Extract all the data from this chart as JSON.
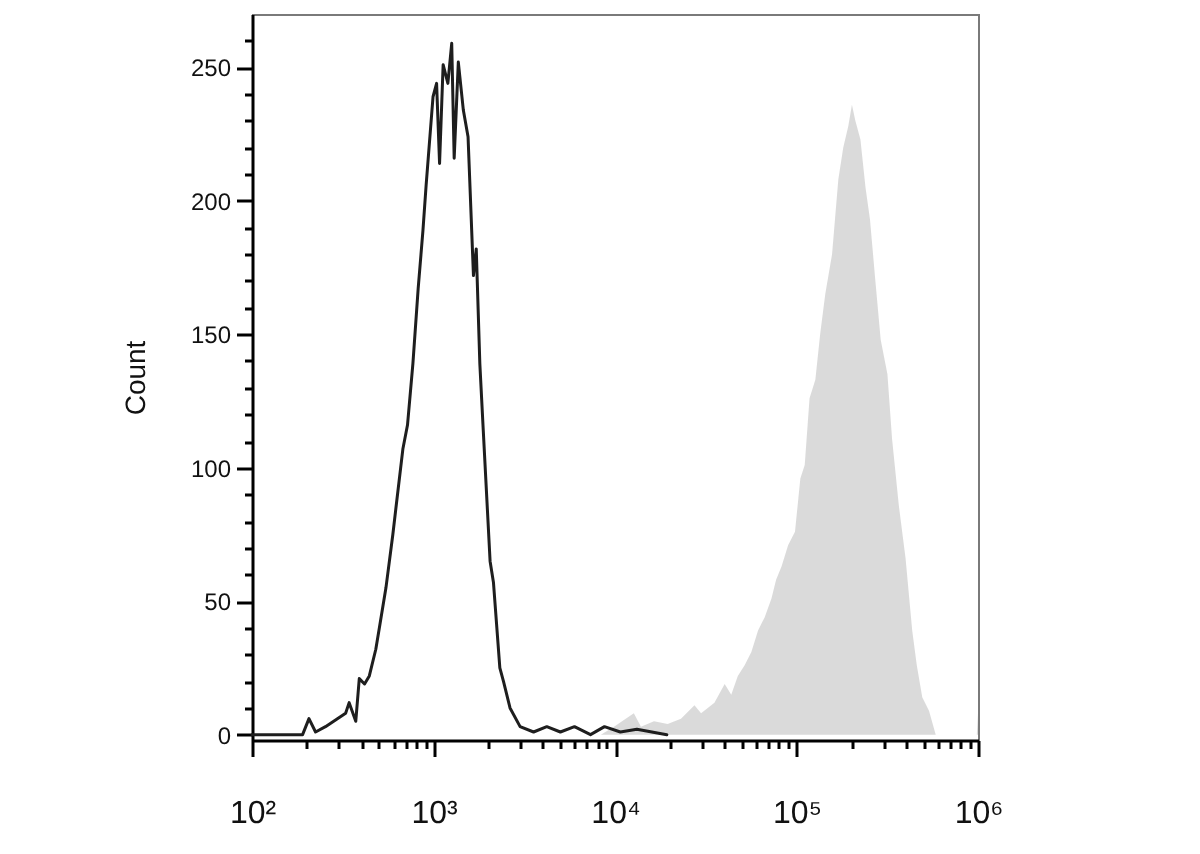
{
  "chart_data": {
    "type": "line",
    "ylabel": "Count",
    "log": "x",
    "xlim": [
      100,
      1000000
    ],
    "xticks": [
      {
        "value": 100,
        "label": "10²"
      },
      {
        "value": 200,
        "label": null
      },
      {
        "value": 300,
        "label": null
      },
      {
        "value": 400,
        "label": null
      },
      {
        "value": 500,
        "label": null
      },
      {
        "value": 600,
        "label": null
      },
      {
        "value": 700,
        "label": null
      },
      {
        "value": 800,
        "label": null
      },
      {
        "value": 900,
        "label": null
      },
      {
        "value": 1000,
        "label": "10³"
      },
      {
        "value": 2000,
        "label": null
      },
      {
        "value": 3000,
        "label": null
      },
      {
        "value": 4000,
        "label": null
      },
      {
        "value": 5000,
        "label": null
      },
      {
        "value": 6000,
        "label": null
      },
      {
        "value": 7000,
        "label": null
      },
      {
        "value": 8000,
        "label": null
      },
      {
        "value": 9000,
        "label": null
      },
      {
        "value": 10000,
        "label": "10⁴"
      },
      {
        "value": 20000,
        "label": null
      },
      {
        "value": 30000,
        "label": null
      },
      {
        "value": 40000,
        "label": null
      },
      {
        "value": 50000,
        "label": null
      },
      {
        "value": 60000,
        "label": null
      },
      {
        "value": 70000,
        "label": null
      },
      {
        "value": 80000,
        "label": null
      },
      {
        "value": 90000,
        "label": null
      },
      {
        "value": 100000,
        "label": "10⁵"
      },
      {
        "value": 200000,
        "label": null
      },
      {
        "value": 300000,
        "label": null
      },
      {
        "value": 400000,
        "label": null
      },
      {
        "value": 500000,
        "label": null
      },
      {
        "value": 600000,
        "label": null
      },
      {
        "value": 700000,
        "label": null
      },
      {
        "value": 800000,
        "label": null
      },
      {
        "value": 900000,
        "label": null
      },
      {
        "value": 1000000,
        "label": "10⁶"
      }
    ],
    "ylim": [
      -2,
      270
    ],
    "yticks": [
      0,
      {
        "value": 10,
        "label": null
      },
      {
        "value": 20,
        "label": null
      },
      {
        "value": 30,
        "label": null
      },
      {
        "value": 40,
        "label": null
      },
      50,
      {
        "value": 60,
        "label": null
      },
      {
        "value": 70,
        "label": null
      },
      {
        "value": 80,
        "label": null
      },
      {
        "value": 90,
        "label": null
      },
      100,
      {
        "value": 110,
        "label": null
      },
      {
        "value": 120,
        "label": null
      },
      {
        "value": 130,
        "label": null
      },
      {
        "value": 140,
        "label": null
      },
      150,
      {
        "value": 160,
        "label": null
      },
      {
        "value": 170,
        "label": null
      },
      {
        "value": 180,
        "label": null
      },
      {
        "value": 190,
        "label": null
      },
      200,
      {
        "value": 210,
        "label": null
      },
      {
        "value": 220,
        "label": null
      },
      {
        "value": 230,
        "label": null
      },
      {
        "value": 240,
        "label": null
      },
      250,
      {
        "value": 260,
        "label": null
      }
    ],
    "series": [
      {
        "type": "area",
        "color": "#a6a6a6",
        "x": [
          100,
          8360,
          9870,
          12700,
          13900,
          16400,
          19500,
          23100,
          27400,
          29800,
          35300,
          40200,
          43700,
          47500,
          51800,
          56400,
          61400,
          66800,
          72800,
          77200,
          82700,
          89900,
          98100,
          105000,
          111000,
          118000,
          127000,
          135000,
          144000,
          157000,
          170000,
          181000,
          193000,
          202000,
          211000,
          225000,
          240000,
          254000,
          272000,
          291000,
          317000,
          336000,
          366000,
          399000,
          434000,
          460000,
          493000,
          537000,
          585000,
          985000,
          1000000
        ],
        "values": [
          0,
          0,
          3,
          8,
          3,
          5,
          4,
          6,
          11,
          8,
          12,
          19,
          15,
          22,
          26,
          31,
          39,
          44,
          51,
          58,
          63,
          71,
          76,
          96,
          101,
          126,
          133,
          150,
          165,
          180,
          208,
          220,
          228,
          236,
          230,
          223,
          205,
          193,
          170,
          148,
          135,
          111,
          86,
          66,
          39,
          26,
          14,
          9,
          0,
          0,
          8
        ]
      },
      {
        "type": "line",
        "color": "#1e1e1e",
        "x": [
          100,
          190,
          206,
          224,
          254,
          328,
          343,
          373,
          390,
          417,
          443,
          481,
          503,
          547,
          597,
          621,
          678,
          719,
          770,
          823,
          875,
          911,
          994,
          1040,
          1080,
          1130,
          1200,
          1260,
          1300,
          1370,
          1460,
          1550,
          1660,
          1720,
          1800,
          1880,
          2050,
          2140,
          2320,
          2430,
          2640,
          3000,
          3560,
          4210,
          5000,
          5980,
          7330,
          8750,
          10700,
          13200,
          19300
        ],
        "values": [
          0,
          0,
          6,
          1,
          3,
          8,
          12,
          5,
          21,
          19,
          22,
          32,
          40,
          55,
          75,
          85,
          107,
          116,
          139,
          167,
          189,
          206,
          239,
          244,
          214,
          251,
          244,
          259,
          216,
          252,
          234,
          224,
          172,
          182,
          139,
          114,
          65,
          57,
          25,
          20,
          10,
          3,
          1,
          3,
          1,
          3,
          0,
          3,
          1,
          2,
          0
        ]
      }
    ]
  }
}
